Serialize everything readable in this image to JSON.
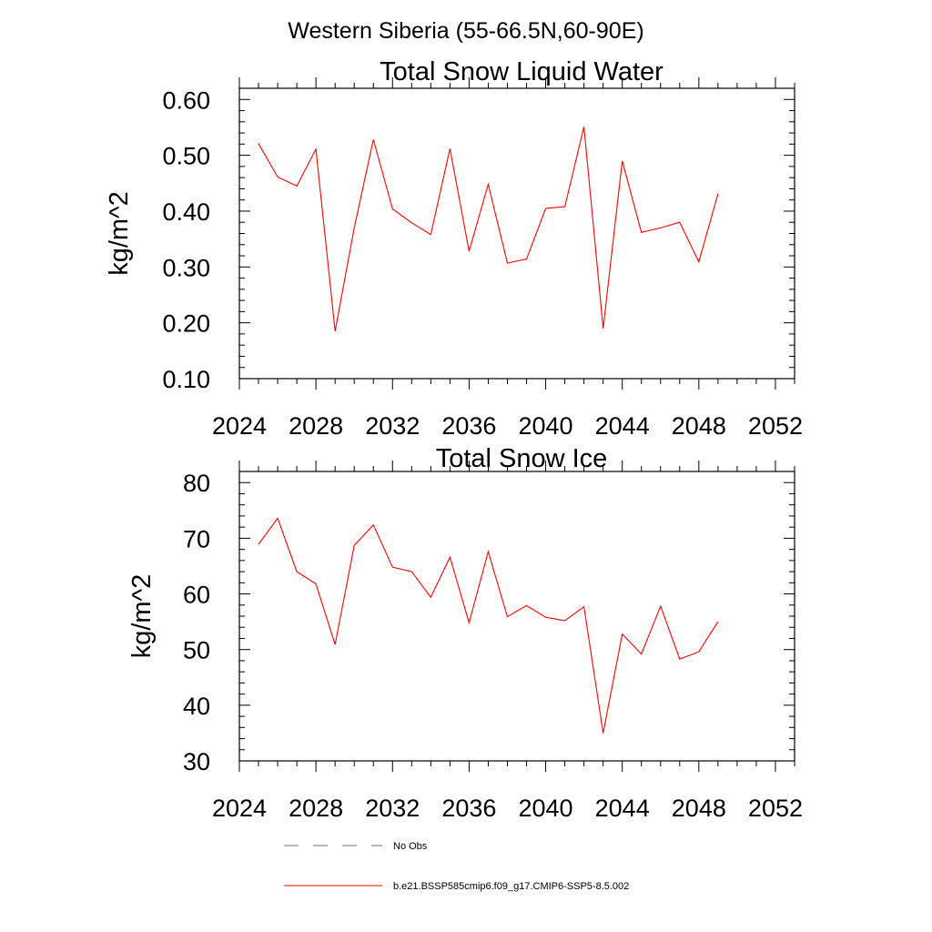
{
  "suptitle": "Western Siberia (55-66.5N,60-90E)",
  "legend": {
    "entries": [
      {
        "label": "No Obs",
        "color": "#6b6b9a",
        "dash": "dashed"
      },
      {
        "label": "b.e21.BSSP585cmip6.f09_g17.CMIP6-SSP5-8.5.002",
        "color": "#ff0000",
        "dash": "solid"
      }
    ],
    "placement": "bottom"
  },
  "chart_data": [
    {
      "type": "line",
      "title": "Total Snow Liquid Water",
      "xlabel": "",
      "ylabel": "kg/m^2",
      "xlim": [
        2024,
        2053
      ],
      "ylim": [
        0.1,
        0.62
      ],
      "xticks": [
        2024,
        2028,
        2032,
        2036,
        2040,
        2044,
        2048,
        2052
      ],
      "xtick_labels": [
        "2024",
        "2028",
        "2032",
        "2036",
        "2040",
        "2044",
        "2048",
        "2052"
      ],
      "yticks": [
        0.1,
        0.2,
        0.3,
        0.4,
        0.5,
        0.6
      ],
      "ytick_labels": [
        "0.10",
        "0.20",
        "0.30",
        "0.40",
        "0.50",
        "0.60"
      ],
      "grid": false,
      "series": [
        {
          "color": "#ff0000",
          "x": [
            2025,
            2026,
            2027,
            2028,
            2029,
            2030,
            2031,
            2032,
            2033,
            2034,
            2035,
            2036,
            2037,
            2038,
            2039,
            2040,
            2041,
            2042,
            2043,
            2044,
            2045,
            2046,
            2047,
            2048,
            2049
          ],
          "y": [
            0.521,
            0.461,
            0.445,
            0.511,
            0.185,
            0.37,
            0.528,
            0.404,
            0.379,
            0.358,
            0.512,
            0.328,
            0.448,
            0.307,
            0.314,
            0.405,
            0.408,
            0.551,
            0.19,
            0.49,
            0.362,
            0.37,
            0.38,
            0.309,
            0.431
          ]
        }
      ]
    },
    {
      "type": "line",
      "title": "Total Snow Ice",
      "xlabel": "",
      "ylabel": "kg/m^2",
      "xlim": [
        2024,
        2053
      ],
      "ylim": [
        30,
        82
      ],
      "xticks": [
        2024,
        2028,
        2032,
        2036,
        2040,
        2044,
        2048,
        2052
      ],
      "xtick_labels": [
        "2024",
        "2028",
        "2032",
        "2036",
        "2040",
        "2044",
        "2048",
        "2052"
      ],
      "yticks": [
        30,
        40,
        50,
        60,
        70,
        80
      ],
      "ytick_labels": [
        "30",
        "40",
        "50",
        "60",
        "70",
        "80"
      ],
      "grid": false,
      "series": [
        {
          "color": "#ff0000",
          "x": [
            2025,
            2026,
            2027,
            2028,
            2029,
            2030,
            2031,
            2032,
            2033,
            2034,
            2035,
            2036,
            2037,
            2038,
            2039,
            2040,
            2041,
            2042,
            2043,
            2044,
            2045,
            2046,
            2047,
            2048,
            2049
          ],
          "y": [
            68.9,
            73.6,
            64.0,
            61.8,
            50.9,
            68.7,
            72.4,
            64.8,
            64.0,
            59.4,
            66.6,
            54.8,
            67.6,
            55.9,
            57.9,
            55.8,
            55.2,
            57.7,
            35.0,
            52.8,
            49.2,
            57.8,
            48.3,
            49.6,
            55.0
          ]
        }
      ]
    }
  ]
}
